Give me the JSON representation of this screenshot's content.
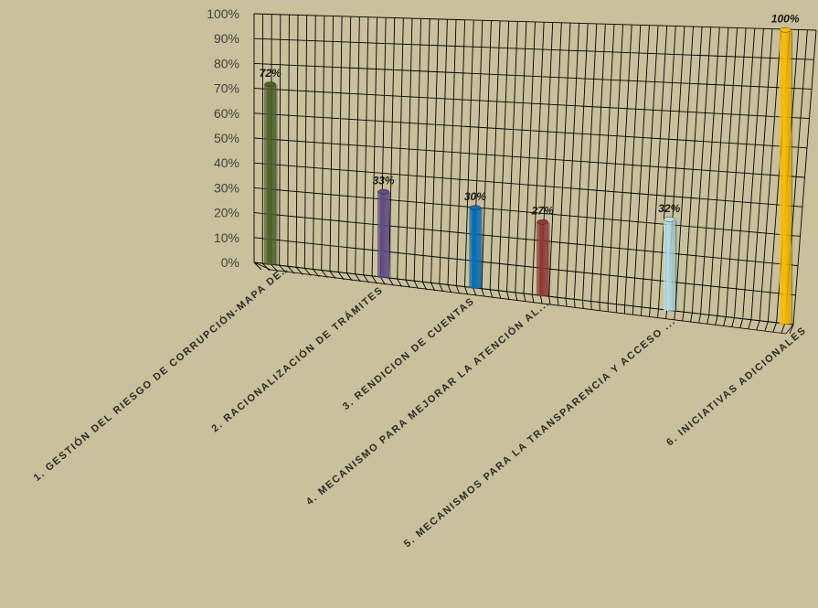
{
  "chart_data": {
    "type": "bar",
    "title": "",
    "xlabel": "",
    "ylabel": "",
    "ylim": [
      0,
      100
    ],
    "y_ticks": [
      "0%",
      "10%",
      "20%",
      "30%",
      "40%",
      "50%",
      "60%",
      "70%",
      "80%",
      "90%",
      "100%"
    ],
    "grid": true,
    "three_d": true,
    "categories": [
      "1. GESTIÓN DEL RIESGO DE CORRUPCIÓN-MAPA DE...",
      "2. RACIONALIZACIÓN DE TRÁMITES",
      "3. RENDICION DE CUENTAS",
      "4. MECANISMO PARA MEJORAR LA ATENCIÓN AL...",
      "5. MECANISMOS PARA LA TRANSPARENCIA Y ACCESO ...",
      "6. INICIATIVAS ADICIONALES"
    ],
    "values": [
      72,
      33,
      30,
      27,
      32,
      100
    ],
    "data_labels": [
      "72%",
      "33%",
      "30%",
      "27%",
      "32%",
      "100%"
    ],
    "colors": [
      "#4f6228",
      "#5f4b8b",
      "#0070c0",
      "#953735",
      "#b7dee8",
      "#ffc000"
    ]
  }
}
